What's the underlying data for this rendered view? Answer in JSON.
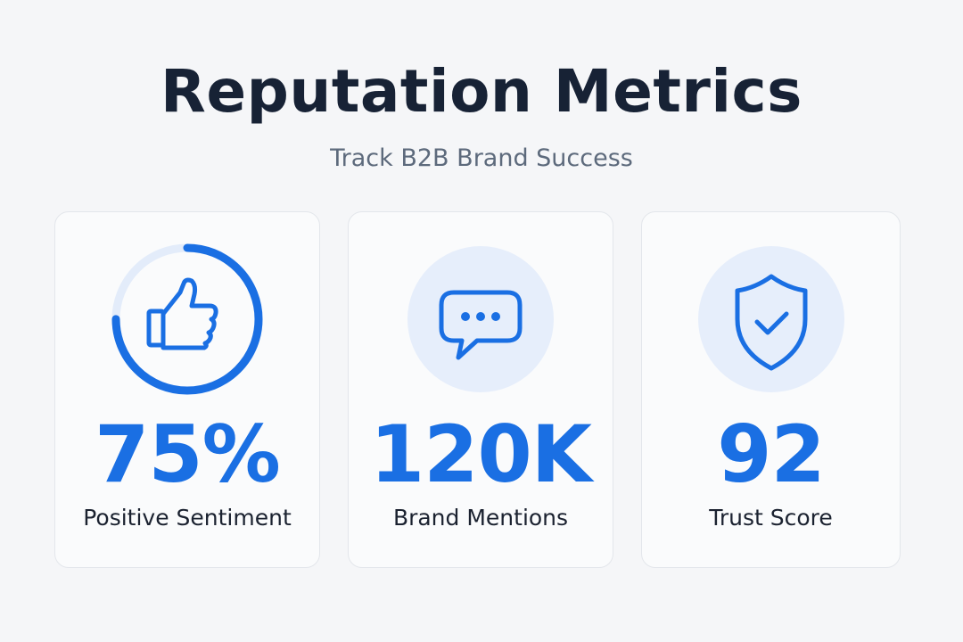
{
  "header": {
    "title": "Reputation Metrics",
    "subtitle": "Track B2B Brand Success"
  },
  "colors": {
    "accent": "#1a6fe3",
    "icon_bg": "#e6eefb",
    "title": "#172235",
    "subtitle": "#5d6a7c"
  },
  "metrics": [
    {
      "value": "75%",
      "label": "Positive Sentiment",
      "icon": "thumbs-up-icon",
      "progress": 0.75
    },
    {
      "value": "120K",
      "label": "Brand Mentions",
      "icon": "chat-bubble-icon"
    },
    {
      "value": "92",
      "label": "Trust Score",
      "icon": "shield-check-icon"
    }
  ]
}
